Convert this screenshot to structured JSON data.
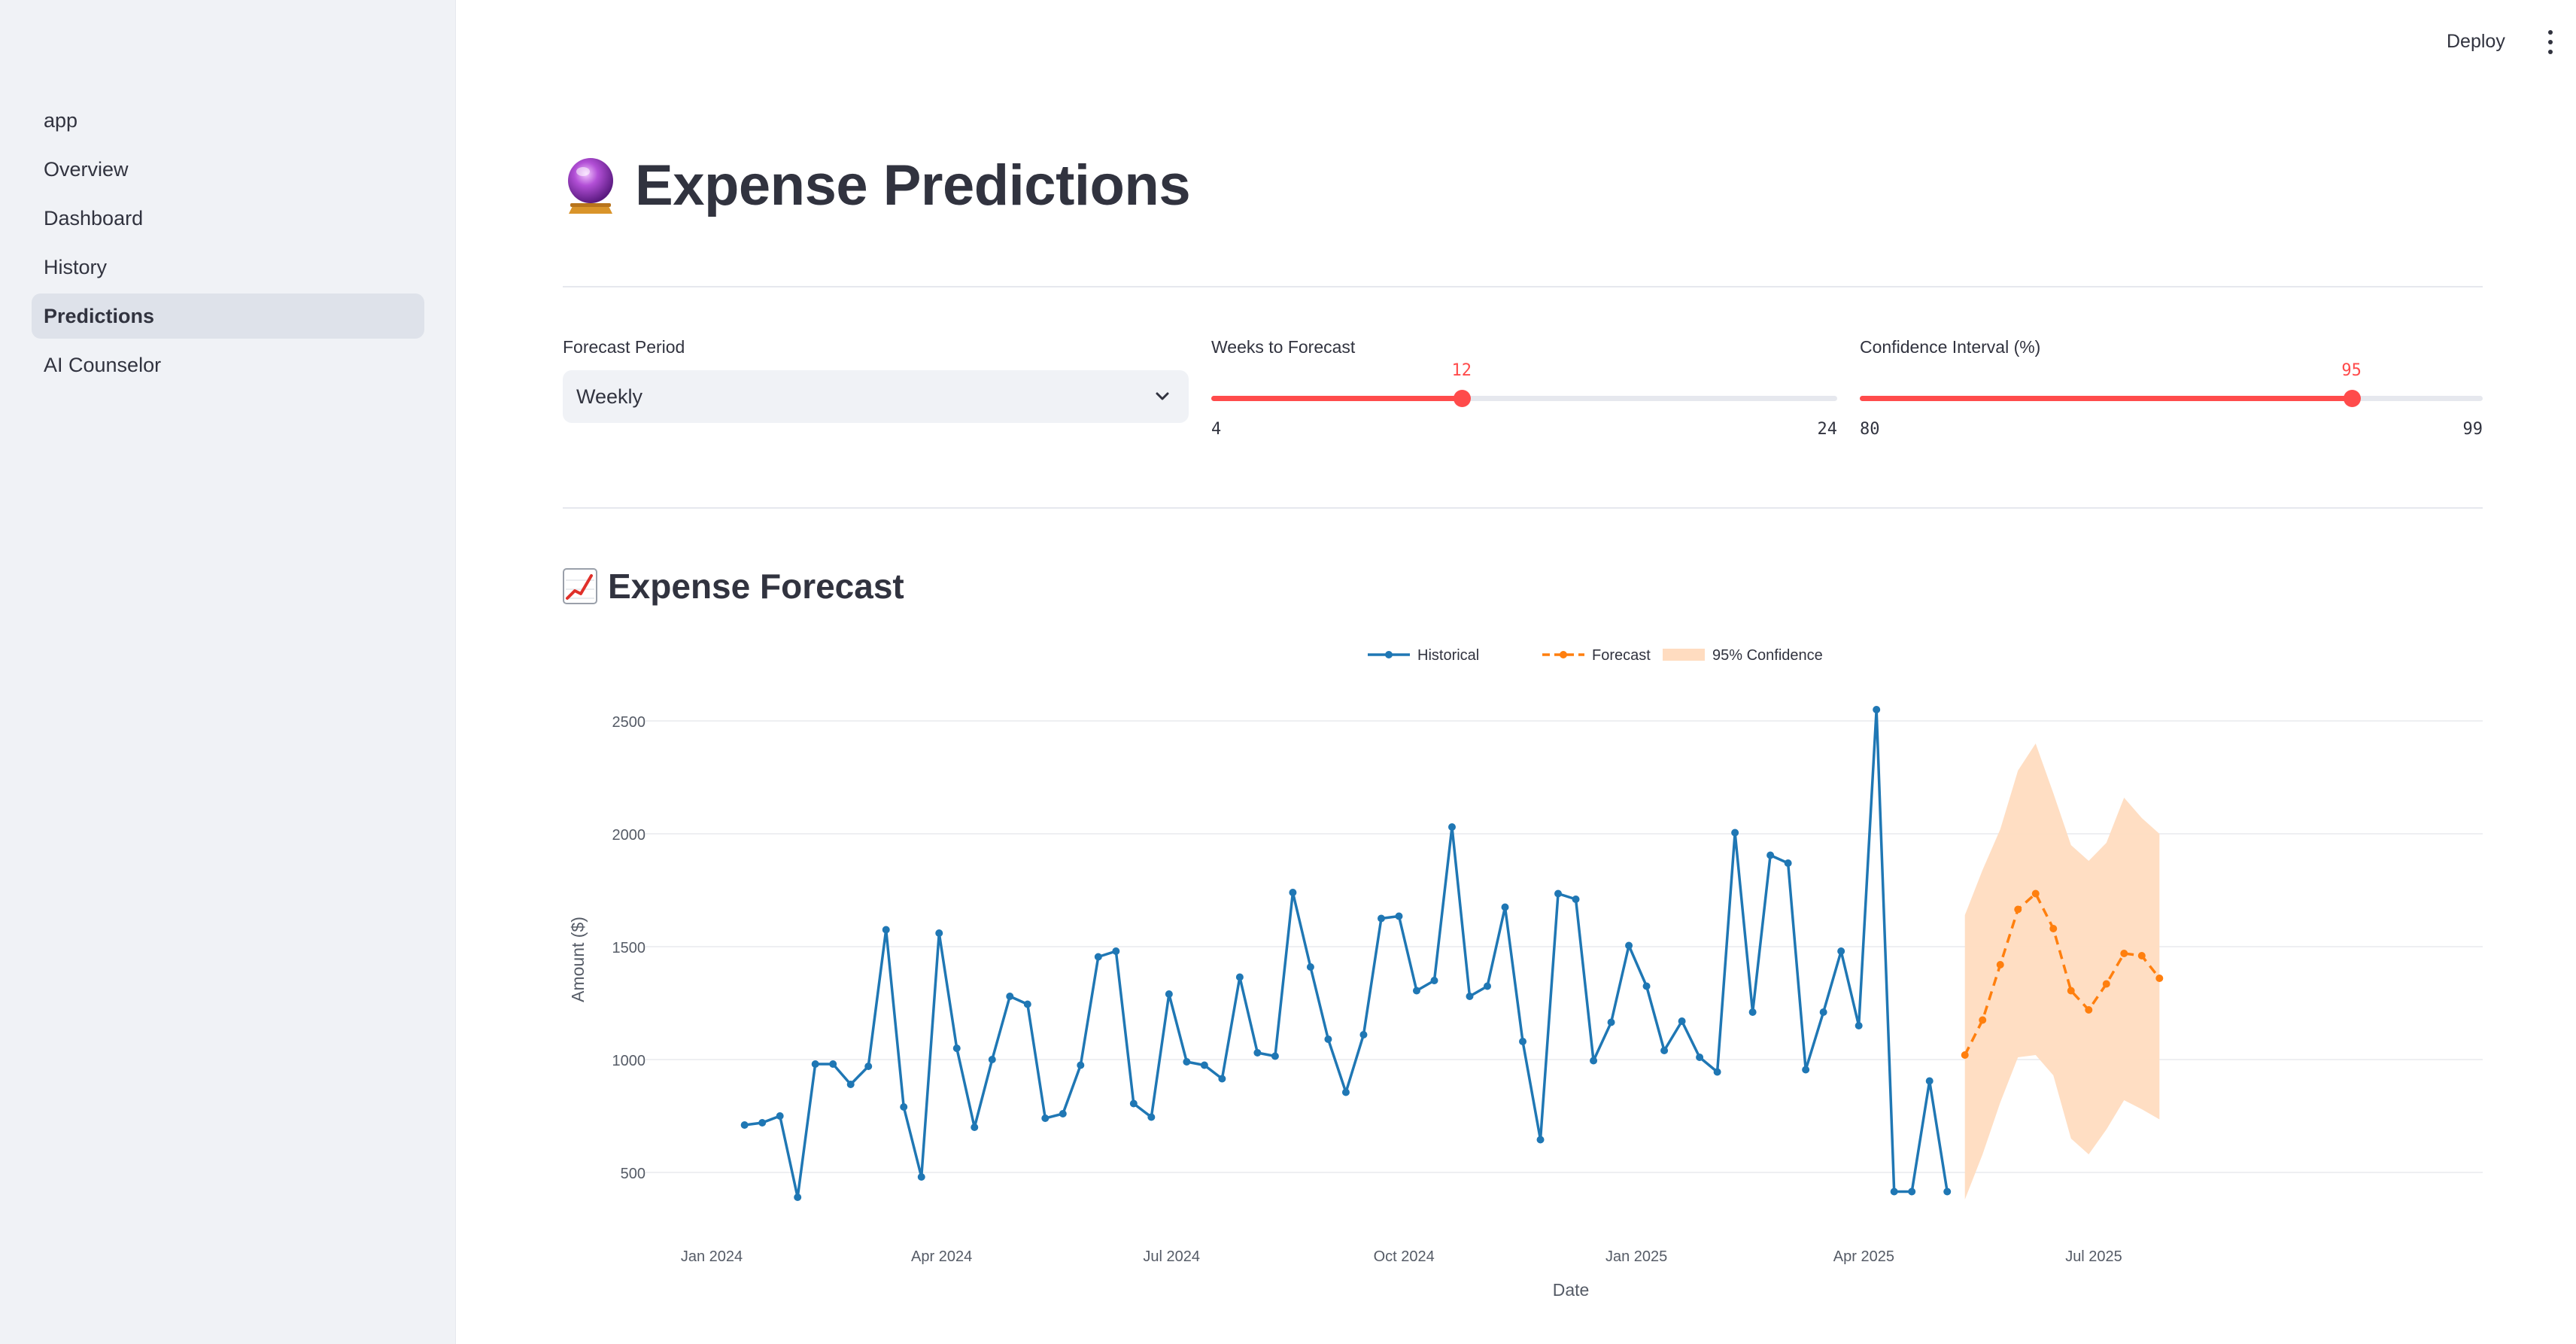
{
  "sidebar": {
    "items": [
      {
        "label": "app"
      },
      {
        "label": "Overview"
      },
      {
        "label": "Dashboard"
      },
      {
        "label": "History"
      },
      {
        "label": "Predictions"
      },
      {
        "label": "AI Counselor"
      }
    ],
    "active_index": 4
  },
  "header": {
    "deploy_label": "Deploy"
  },
  "page": {
    "title": "Expense Predictions",
    "title_icon": "crystal-ball-icon"
  },
  "controls": {
    "forecast_period": {
      "label": "Forecast Period",
      "value": "Weekly"
    },
    "weeks": {
      "label": "Weeks to Forecast",
      "value": 12,
      "min": 4,
      "max": 24
    },
    "confidence": {
      "label": "Confidence Interval (%)",
      "value": 95,
      "min": 80,
      "max": 99
    }
  },
  "section": {
    "title": "Expense Forecast",
    "icon": "chart-increasing-icon"
  },
  "colors": {
    "accent": "#ff4b4b",
    "historical": "#1f77b4",
    "forecast": "#ff7f0e",
    "band": "#ffdcc0"
  },
  "chart_data": {
    "type": "line",
    "xlabel": "Date",
    "ylabel": "Amount ($)",
    "y_ticks": [
      500,
      1000,
      1500,
      2000,
      2500
    ],
    "x_ticks": [
      "Jan 2024",
      "Apr 2024",
      "Jul 2024",
      "Oct 2024",
      "Jan 2025",
      "Apr 2025",
      "Jul 2025"
    ],
    "x_tick_dates": [
      "2024-01-01",
      "2024-04-01",
      "2024-07-01",
      "2024-10-01",
      "2025-01-01",
      "2025-04-01",
      "2025-07-01"
    ],
    "legend": [
      "Historical",
      "Forecast",
      "95% Confidence"
    ],
    "legend_position": "top-center",
    "series": [
      {
        "name": "Historical",
        "style": "solid",
        "x": [
          "2024-01-14",
          "2024-01-21",
          "2024-01-28",
          "2024-02-04",
          "2024-02-11",
          "2024-02-18",
          "2024-02-25",
          "2024-03-03",
          "2024-03-10",
          "2024-03-17",
          "2024-03-24",
          "2024-03-31",
          "2024-04-07",
          "2024-04-14",
          "2024-04-21",
          "2024-04-28",
          "2024-05-05",
          "2024-05-12",
          "2024-05-19",
          "2024-05-26",
          "2024-06-02",
          "2024-06-09",
          "2024-06-16",
          "2024-06-23",
          "2024-06-30",
          "2024-07-07",
          "2024-07-14",
          "2024-07-21",
          "2024-07-28",
          "2024-08-04",
          "2024-08-11",
          "2024-08-18",
          "2024-08-25",
          "2024-09-01",
          "2024-09-08",
          "2024-09-15",
          "2024-09-22",
          "2024-09-29",
          "2024-10-06",
          "2024-10-13",
          "2024-10-20",
          "2024-10-27",
          "2024-11-03",
          "2024-11-10",
          "2024-11-17",
          "2024-11-24",
          "2024-12-01",
          "2024-12-08",
          "2024-12-15",
          "2024-12-22",
          "2024-12-29",
          "2025-01-05",
          "2025-01-12",
          "2025-01-19",
          "2025-01-26",
          "2025-02-02",
          "2025-02-09",
          "2025-02-16",
          "2025-02-23",
          "2025-03-02",
          "2025-03-09",
          "2025-03-16",
          "2025-03-23",
          "2025-03-30",
          "2025-04-06",
          "2025-04-13",
          "2025-04-20",
          "2025-04-27",
          "2025-05-04"
        ],
        "values": [
          710,
          720,
          750,
          390,
          980,
          980,
          890,
          970,
          1575,
          790,
          480,
          1560,
          1050,
          700,
          1000,
          1280,
          1245,
          740,
          760,
          975,
          1455,
          1480,
          805,
          745,
          1290,
          990,
          975,
          915,
          1365,
          1030,
          1015,
          1740,
          1410,
          1090,
          855,
          1110,
          1625,
          1635,
          1305,
          1350,
          2030,
          1280,
          1325,
          1675,
          1080,
          645,
          1735,
          1710,
          995,
          1165,
          1505,
          1325,
          1040,
          1170,
          1010,
          945,
          2005,
          1210,
          1905,
          1870,
          955,
          1210,
          1480,
          1150,
          2550,
          415,
          415,
          905,
          415
        ]
      },
      {
        "name": "Forecast",
        "style": "dashed",
        "x": [
          "2025-05-11",
          "2025-05-18",
          "2025-05-25",
          "2025-06-01",
          "2025-06-08",
          "2025-06-15",
          "2025-06-22",
          "2025-06-29",
          "2025-07-06",
          "2025-07-13",
          "2025-07-20",
          "2025-07-27"
        ],
        "values": [
          1020,
          1175,
          1420,
          1665,
          1735,
          1580,
          1305,
          1220,
          1335,
          1470,
          1460,
          1360
        ],
        "lower": [
          380,
          580,
          810,
          1010,
          1020,
          930,
          650,
          580,
          690,
          820,
          780,
          735
        ],
        "upper": [
          1640,
          1840,
          2020,
          2280,
          2400,
          2180,
          1950,
          1880,
          1960,
          2160,
          2070,
          2000
        ]
      }
    ]
  }
}
